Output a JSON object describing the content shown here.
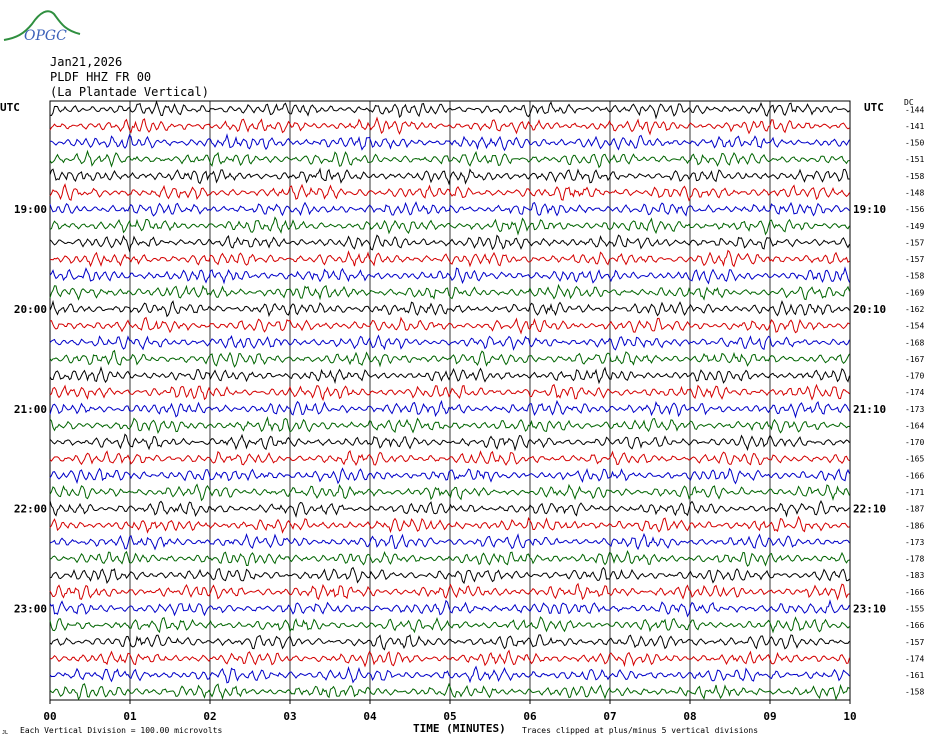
{
  "logo": {
    "text": "OPGC",
    "color": "#2f8f3f",
    "text_color": "#3a5fb8"
  },
  "header": {
    "date": "Jan21,2026",
    "station": "PLDF HHZ FR 00",
    "site": "(La Plantade Vertical)"
  },
  "axis": {
    "utc_left": "UTC",
    "utc_right": "UTC",
    "dc_label": "DC",
    "xlabel": "TIME (MINUTES)",
    "left_hours": [
      "19:00",
      "20:00",
      "21:00",
      "22:00",
      "23:00"
    ],
    "right_hours": [
      "19:10",
      "20:10",
      "21:10",
      "22:10",
      "23:10"
    ]
  },
  "footer": {
    "scale_note": "Each Vertical Division =  100.00 microvolts",
    "clip_note": "Traces clipped at plus/minus 5 vertical divisions",
    "corner_mark": "JL"
  },
  "chart_data": {
    "type": "line",
    "title": "PLDF HHZ FR 00 (La Plantade Vertical)",
    "xlabel": "TIME (MINUTES)",
    "xlim": [
      0,
      10
    ],
    "x_ticks": [
      "00",
      "01",
      "02",
      "03",
      "04",
      "05",
      "06",
      "07",
      "08",
      "09",
      "10"
    ],
    "trace_colors": [
      "#000000",
      "#d40000",
      "#0000c8",
      "#006400"
    ],
    "grid": true,
    "dc_offsets": [
      -144,
      -141,
      -150,
      -151,
      -158,
      -148,
      -156,
      -149,
      -157,
      -157,
      -158,
      -169,
      -162,
      -154,
      -168,
      -167,
      -170,
      -174,
      -173,
      -164,
      -170,
      -165,
      -166,
      -171,
      -187,
      -186,
      -173,
      -178,
      -183,
      -166,
      -155,
      -166,
      -157,
      -174,
      -161,
      -158
    ]
  }
}
